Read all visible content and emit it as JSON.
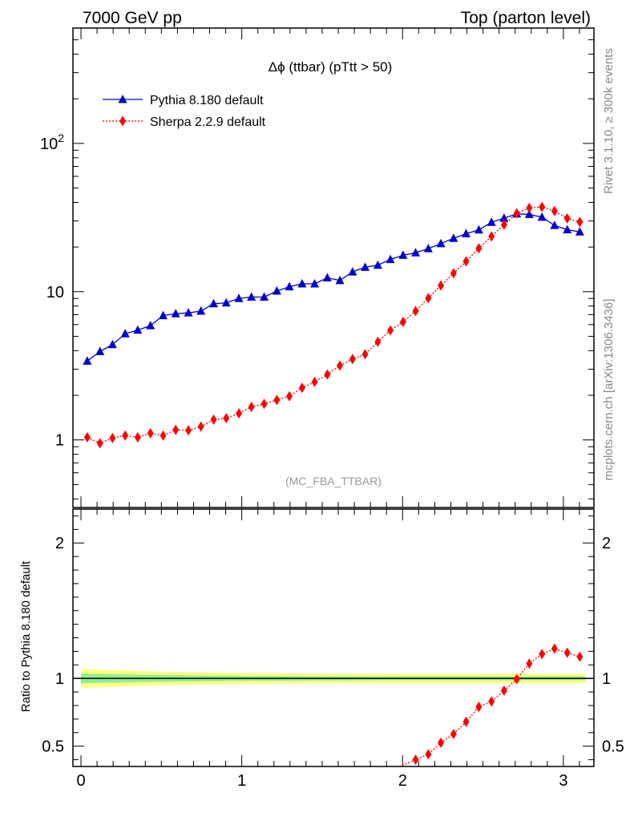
{
  "header": {
    "left_label": "7000 GeV pp",
    "right_label": "Top (parton level)"
  },
  "side_labels": {
    "rivet": "Rivet 3.1.10, ≥ 300k events",
    "mcplots": "mcplots.cern.ch [arXiv:1306.3436]"
  },
  "chart_data": [
    {
      "type": "line",
      "title": "Δϕ (ttbar) (pTtt > 50)",
      "watermark": "(MC_FBA_TTBAR)",
      "xlabel": "",
      "ylabel": "",
      "xlim": [
        -0.05,
        3.19
      ],
      "ylim": [
        0.35,
        600
      ],
      "yscale": "log",
      "x_ticks": [
        0,
        1,
        2,
        3
      ],
      "x_tick_labels": [
        "0",
        "1",
        "2",
        "3"
      ],
      "y_ticks": [
        1,
        10,
        100
      ],
      "y_tick_labels": [
        "1",
        "10",
        "10^2"
      ],
      "legend_position": "top-left",
      "x": [
        0.039,
        0.118,
        0.196,
        0.275,
        0.353,
        0.432,
        0.511,
        0.589,
        0.668,
        0.746,
        0.825,
        0.903,
        0.982,
        1.06,
        1.139,
        1.218,
        1.296,
        1.375,
        1.453,
        1.532,
        1.61,
        1.689,
        1.767,
        1.846,
        1.924,
        2.003,
        2.081,
        2.16,
        2.238,
        2.317,
        2.395,
        2.474,
        2.553,
        2.631,
        2.71,
        2.788,
        2.867,
        2.945,
        3.024,
        3.102
      ],
      "series": [
        {
          "name": "Pythia 8.180 default",
          "color": "#0000cc",
          "marker": "triangle",
          "line": "solid",
          "values": [
            3.4,
            3.95,
            4.4,
            5.2,
            5.5,
            5.9,
            6.9,
            7.1,
            7.2,
            7.4,
            8.3,
            8.4,
            9.0,
            9.2,
            9.2,
            10.1,
            10.8,
            11.3,
            11.3,
            12.4,
            11.9,
            13.6,
            14.6,
            15.1,
            16.5,
            17.6,
            18.3,
            19.5,
            21.1,
            22.9,
            24.6,
            26.1,
            29.4,
            31.3,
            33.5,
            33.2,
            31.8,
            28.0,
            26.2,
            25.3
          ]
        },
        {
          "name": "Sherpa 2.2.9 default",
          "color": "#ff0000",
          "marker": "diamond",
          "line": "dotted",
          "values": [
            1.04,
            0.95,
            1.03,
            1.07,
            1.04,
            1.11,
            1.07,
            1.17,
            1.16,
            1.23,
            1.37,
            1.4,
            1.51,
            1.67,
            1.75,
            1.86,
            1.97,
            2.25,
            2.46,
            2.76,
            3.17,
            3.51,
            3.78,
            4.59,
            5.48,
            6.25,
            7.41,
            9.06,
            11.0,
            13.3,
            16.0,
            19.6,
            23.6,
            28.3,
            33.8,
            36.7,
            37.3,
            35.0,
            31.2,
            29.5
          ]
        }
      ]
    },
    {
      "type": "line",
      "title": "",
      "xlabel": "",
      "ylabel": "Ratio to Pythia 8.180 default",
      "xlim": [
        -0.05,
        3.19
      ],
      "ylim": [
        0.35,
        2.25
      ],
      "x_ticks": [
        0,
        1,
        2,
        3
      ],
      "x_tick_labels": [
        "0",
        "1",
        "2",
        "3"
      ],
      "y_ticks": [
        0.5,
        1,
        2
      ],
      "y_tick_labels": [
        "0.5",
        "1",
        "2"
      ],
      "reference_line": 1,
      "uncertainty_band": {
        "x": [
          0.0,
          0.5,
          1.0,
          1.5,
          2.0,
          2.5,
          3.0,
          3.14
        ],
        "outer_halfwidth": [
          0.07,
          0.05,
          0.04,
          0.035,
          0.035,
          0.035,
          0.035,
          0.035
        ],
        "inner_halfwidth": [
          0.035,
          0.025,
          0.018,
          0.015,
          0.014,
          0.014,
          0.014,
          0.014
        ],
        "outer_color": "#ffff80",
        "inner_color": "#90ee90"
      },
      "series": [
        {
          "name": "Sherpa 2.2.9 default",
          "color": "#ff0000",
          "marker": "diamond",
          "line": "dotted",
          "x": [
            2.081,
            2.16,
            2.238,
            2.317,
            2.395,
            2.474,
            2.553,
            2.631,
            2.71,
            2.788,
            2.867,
            2.945,
            3.024,
            3.102
          ],
          "values": [
            0.4,
            0.44,
            0.525,
            0.59,
            0.68,
            0.79,
            0.83,
            0.91,
            0.995,
            1.11,
            1.18,
            1.22,
            1.19,
            1.16
          ]
        }
      ]
    }
  ]
}
